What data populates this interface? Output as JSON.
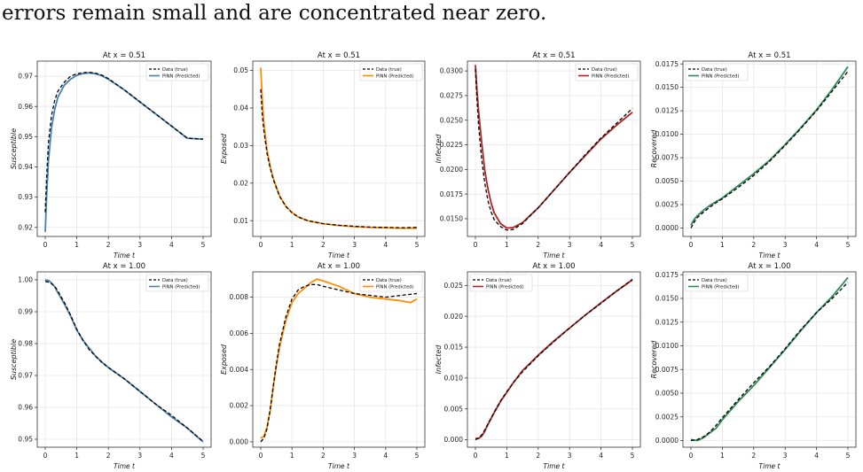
{
  "caption": "errors remain small and are concentrated near zero.",
  "legend_true": "Data (true)",
  "legend_pred": "PINN (Predicted)",
  "xlabel": "Time t",
  "chart_data": [
    {
      "type": "line",
      "title": "At x = 0.51",
      "xlabel": "Time t",
      "ylabel": "Susceptible",
      "xlim": [
        0,
        5
      ],
      "ylim": [
        0.917,
        0.975
      ],
      "xticks": [
        "0",
        "1",
        "2",
        "3",
        "4",
        "5"
      ],
      "yticks": [
        "0.92",
        "0.93",
        "0.94",
        "0.95",
        "0.96",
        "0.97"
      ],
      "pred_color": "#4682b4",
      "legend": "top-right",
      "series": [
        {
          "name": "Data (true)",
          "x": [
            0,
            0.05,
            0.1,
            0.2,
            0.3,
            0.4,
            0.6,
            0.8,
            1.0,
            1.2,
            1.4,
            1.6,
            1.8,
            2.0,
            2.5,
            3.0,
            3.5,
            4.0,
            4.5,
            5.0
          ],
          "y": [
            0.925,
            0.938,
            0.948,
            0.957,
            0.962,
            0.965,
            0.968,
            0.97,
            0.9708,
            0.9712,
            0.9713,
            0.971,
            0.9703,
            0.9692,
            0.9655,
            0.9615,
            0.9575,
            0.9535,
            0.9495,
            0.9492
          ]
        },
        {
          "name": "PINN (Predicted)",
          "x": [
            0,
            0.05,
            0.1,
            0.2,
            0.3,
            0.4,
            0.6,
            0.8,
            1.0,
            1.2,
            1.4,
            1.6,
            1.8,
            2.0,
            2.5,
            3.0,
            3.5,
            4.0,
            4.5,
            5.0
          ],
          "y": [
            0.9185,
            0.932,
            0.942,
            0.953,
            0.959,
            0.963,
            0.967,
            0.969,
            0.9703,
            0.9709,
            0.9711,
            0.9708,
            0.9701,
            0.969,
            0.9655,
            0.9615,
            0.9575,
            0.9535,
            0.9495,
            0.9492
          ]
        }
      ]
    },
    {
      "type": "line",
      "title": "At x = 0.51",
      "xlabel": "Time t",
      "ylabel": "Exposed",
      "xlim": [
        0,
        5
      ],
      "ylim": [
        0.0058,
        0.0525
      ],
      "xticks": [
        "0",
        "1",
        "2",
        "3",
        "4",
        "5"
      ],
      "yticks": [
        "0.01",
        "0.02",
        "0.03",
        "0.04",
        "0.05"
      ],
      "pred_color": "#ff8c00",
      "legend": "top-right",
      "series": [
        {
          "name": "Data (true)",
          "x": [
            0,
            0.05,
            0.1,
            0.2,
            0.3,
            0.4,
            0.6,
            0.8,
            1.0,
            1.2,
            1.5,
            2.0,
            2.5,
            3.0,
            3.5,
            4.0,
            4.5,
            5.0
          ],
          "y": [
            0.045,
            0.038,
            0.034,
            0.028,
            0.024,
            0.021,
            0.0165,
            0.0138,
            0.0121,
            0.011,
            0.01,
            0.0092,
            0.0088,
            0.0085,
            0.0083,
            0.0082,
            0.0081,
            0.0082
          ]
        },
        {
          "name": "PINN (Predicted)",
          "x": [
            0,
            0.05,
            0.1,
            0.2,
            0.3,
            0.4,
            0.6,
            0.8,
            1.0,
            1.2,
            1.5,
            2.0,
            2.5,
            3.0,
            3.5,
            4.0,
            4.5,
            5.0
          ],
          "y": [
            0.0507,
            0.042,
            0.036,
            0.029,
            0.0245,
            0.0213,
            0.0167,
            0.0139,
            0.0122,
            0.011,
            0.01,
            0.0092,
            0.0087,
            0.0084,
            0.0082,
            0.0081,
            0.008,
            0.008
          ]
        }
      ]
    },
    {
      "type": "line",
      "title": "At x = 0.51",
      "xlabel": "Time t",
      "ylabel": "Infected",
      "xlim": [
        0,
        5
      ],
      "ylim": [
        0.0132,
        0.031
      ],
      "xticks": [
        "0",
        "1",
        "2",
        "3",
        "4",
        "5"
      ],
      "yticks": [
        "0.0150",
        "0.0175",
        "0.0200",
        "0.0225",
        "0.0250",
        "0.0275",
        "0.0300"
      ],
      "pred_color": "#b22222",
      "legend": "top-right",
      "series": [
        {
          "name": "Data (true)",
          "x": [
            0,
            0.05,
            0.1,
            0.2,
            0.3,
            0.4,
            0.5,
            0.6,
            0.8,
            1.0,
            1.2,
            1.5,
            2.0,
            2.5,
            3.0,
            3.5,
            4.0,
            4.5,
            5.0
          ],
          "y": [
            0.0302,
            0.027,
            0.0245,
            0.021,
            0.0186,
            0.0168,
            0.0157,
            0.0149,
            0.0142,
            0.01385,
            0.0139,
            0.0145,
            0.0161,
            0.0179,
            0.0197,
            0.0215,
            0.0232,
            0.0247,
            0.0262
          ]
        },
        {
          "name": "PINN (Predicted)",
          "x": [
            0,
            0.05,
            0.1,
            0.2,
            0.3,
            0.4,
            0.5,
            0.6,
            0.8,
            1.0,
            1.2,
            1.5,
            2.0,
            2.5,
            3.0,
            3.5,
            4.0,
            4.5,
            5.0
          ],
          "y": [
            0.0306,
            0.028,
            0.026,
            0.0227,
            0.0199,
            0.018,
            0.0166,
            0.0156,
            0.0145,
            0.01405,
            0.0141,
            0.0146,
            0.0161,
            0.0179,
            0.0197,
            0.0214,
            0.0231,
            0.0245,
            0.0258
          ]
        }
      ]
    },
    {
      "type": "line",
      "title": "At x = 0.51",
      "xlabel": "Time t",
      "ylabel": "Recovered",
      "xlim": [
        0,
        5
      ],
      "ylim": [
        -0.0009,
        0.0178
      ],
      "xticks": [
        "0",
        "1",
        "2",
        "3",
        "4",
        "5"
      ],
      "yticks": [
        "0.0000",
        "0.0025",
        "0.0050",
        "0.0075",
        "0.0100",
        "0.0125",
        "0.0150",
        "0.0175"
      ],
      "pred_color": "#2e8b57",
      "legend": "top-left",
      "series": [
        {
          "name": "Data (true)",
          "x": [
            0,
            0.1,
            0.2,
            0.4,
            0.6,
            0.8,
            1.0,
            1.5,
            2.0,
            2.5,
            3.0,
            3.5,
            4.0,
            4.5,
            5.0
          ],
          "y": [
            0.0,
            0.0006,
            0.0011,
            0.0017,
            0.0022,
            0.0027,
            0.0031,
            0.0043,
            0.0056,
            0.0071,
            0.0088,
            0.0106,
            0.0125,
            0.0146,
            0.0167
          ]
        },
        {
          "name": "PINN (Predicted)",
          "x": [
            0,
            0.1,
            0.2,
            0.4,
            0.6,
            0.8,
            1.0,
            1.5,
            2.0,
            2.5,
            3.0,
            3.5,
            4.0,
            4.5,
            5.0
          ],
          "y": [
            0.0003,
            0.0009,
            0.0013,
            0.0019,
            0.0024,
            0.0028,
            0.0032,
            0.0045,
            0.0058,
            0.0072,
            0.0089,
            0.0107,
            0.0126,
            0.0148,
            0.0172
          ]
        }
      ]
    },
    {
      "type": "line",
      "title": "At x = 1.00",
      "xlabel": "Time t",
      "ylabel": "Susceptible",
      "xlim": [
        0,
        5
      ],
      "ylim": [
        0.9475,
        1.0025
      ],
      "xticks": [
        "0",
        "1",
        "2",
        "3",
        "4",
        "5"
      ],
      "yticks": [
        "0.95",
        "0.96",
        "0.97",
        "0.98",
        "0.99",
        "1.00"
      ],
      "pred_color": "#4682b4",
      "legend": "top-right",
      "series": [
        {
          "name": "Data (true)",
          "x": [
            0,
            0.1,
            0.2,
            0.3,
            0.4,
            0.6,
            0.8,
            1.0,
            1.2,
            1.4,
            1.6,
            1.8,
            2.0,
            2.5,
            3.0,
            3.5,
            4.0,
            4.5,
            5.0
          ],
          "y": [
            0.9995,
            0.9993,
            0.9988,
            0.998,
            0.9965,
            0.993,
            0.989,
            0.9845,
            0.981,
            0.978,
            0.976,
            0.974,
            0.9725,
            0.969,
            0.965,
            0.961,
            0.9575,
            0.9535,
            0.9493
          ]
        },
        {
          "name": "PINN (Predicted)",
          "x": [
            0,
            0.1,
            0.2,
            0.3,
            0.4,
            0.6,
            0.8,
            1.0,
            1.2,
            1.4,
            1.6,
            1.8,
            2.0,
            2.5,
            3.0,
            3.5,
            4.0,
            4.5,
            5.0
          ],
          "y": [
            1.0,
            0.9998,
            0.999,
            0.9978,
            0.996,
            0.9925,
            0.9887,
            0.9842,
            0.981,
            0.9785,
            0.976,
            0.9742,
            0.9725,
            0.969,
            0.965,
            0.961,
            0.957,
            0.9535,
            0.9492
          ]
        }
      ]
    },
    {
      "type": "line",
      "title": "At x = 1.00",
      "xlabel": "Time t",
      "ylabel": "Exposed",
      "xlim": [
        0,
        5
      ],
      "ylim": [
        -0.0003,
        0.0094
      ],
      "xticks": [
        "0",
        "1",
        "2",
        "3",
        "4",
        "5"
      ],
      "yticks": [
        "0.000",
        "0.002",
        "0.004",
        "0.006",
        "0.008"
      ],
      "pred_color": "#ff8c00",
      "legend": "top-right",
      "series": [
        {
          "name": "Data (true)",
          "x": [
            0,
            0.1,
            0.2,
            0.3,
            0.4,
            0.5,
            0.6,
            0.8,
            1.0,
            1.2,
            1.4,
            1.6,
            1.8,
            2.0,
            2.5,
            3.0,
            3.5,
            4.0,
            4.5,
            5.0
          ],
          "y": [
            0.0,
            0.0002,
            0.0007,
            0.0018,
            0.0031,
            0.0043,
            0.0054,
            0.0069,
            0.0079,
            0.0084,
            0.0086,
            0.0087,
            0.0087,
            0.0086,
            0.0084,
            0.0082,
            0.0081,
            0.008,
            0.0081,
            0.0082
          ]
        },
        {
          "name": "PINN (Predicted)",
          "x": [
            0,
            0.1,
            0.2,
            0.3,
            0.4,
            0.5,
            0.6,
            0.8,
            1.0,
            1.2,
            1.4,
            1.6,
            1.8,
            2.0,
            2.5,
            3.0,
            3.5,
            4.0,
            4.5,
            4.8,
            5.0
          ],
          "y": [
            0.0002,
            0.0003,
            0.0008,
            0.0017,
            0.003,
            0.0042,
            0.0052,
            0.0067,
            0.0077,
            0.0082,
            0.0085,
            0.0088,
            0.009,
            0.0089,
            0.0086,
            0.0082,
            0.008,
            0.0079,
            0.0078,
            0.0077,
            0.0079
          ]
        }
      ]
    },
    {
      "type": "line",
      "title": "At x = 1.00",
      "xlabel": "Time t",
      "ylabel": "Infected",
      "xlim": [
        0,
        5
      ],
      "ylim": [
        -0.0012,
        0.0272
      ],
      "xticks": [
        "0",
        "1",
        "2",
        "3",
        "4",
        "5"
      ],
      "yticks": [
        "0.000",
        "0.005",
        "0.010",
        "0.015",
        "0.020",
        "0.025"
      ],
      "pred_color": "#b22222",
      "legend": "top-left",
      "series": [
        {
          "name": "Data (true)",
          "x": [
            0,
            0.1,
            0.2,
            0.3,
            0.4,
            0.6,
            0.8,
            1.0,
            1.2,
            1.5,
            2.0,
            2.5,
            3.0,
            3.5,
            4.0,
            4.5,
            5.0
          ],
          "y": [
            0.0,
            0.0003,
            0.0008,
            0.0016,
            0.0026,
            0.0045,
            0.0063,
            0.0078,
            0.0092,
            0.011,
            0.0136,
            0.0159,
            0.0181,
            0.0202,
            0.0221,
            0.0241,
            0.026
          ]
        },
        {
          "name": "PINN (Predicted)",
          "x": [
            0,
            0.1,
            0.2,
            0.3,
            0.4,
            0.6,
            0.8,
            1.0,
            1.2,
            1.5,
            2.0,
            2.5,
            3.0,
            3.5,
            4.0,
            4.5,
            5.0
          ],
          "y": [
            0.0002,
            0.0002,
            0.0006,
            0.0014,
            0.0025,
            0.0044,
            0.0062,
            0.0077,
            0.0092,
            0.0112,
            0.0137,
            0.016,
            0.0181,
            0.0202,
            0.0222,
            0.0241,
            0.0259
          ]
        }
      ]
    },
    {
      "type": "line",
      "title": "At x = 1.00",
      "xlabel": "Time t",
      "ylabel": "Recovered",
      "xlim": [
        0,
        5
      ],
      "ylim": [
        -0.0007,
        0.0178
      ],
      "xticks": [
        "0",
        "1",
        "2",
        "3",
        "4",
        "5"
      ],
      "yticks": [
        "0.0000",
        "0.0025",
        "0.0050",
        "0.0075",
        "0.0100",
        "0.0125",
        "0.0150",
        "0.0175"
      ],
      "pred_color": "#2e8b57",
      "legend": "top-left",
      "series": [
        {
          "name": "Data (true)",
          "x": [
            0,
            0.2,
            0.4,
            0.6,
            0.8,
            1.0,
            1.5,
            2.0,
            2.5,
            3.0,
            3.5,
            4.0,
            4.5,
            5.0
          ],
          "y": [
            0.0,
            0.0001,
            0.0004,
            0.0009,
            0.0016,
            0.0024,
            0.0043,
            0.0061,
            0.0078,
            0.0097,
            0.0117,
            0.0135,
            0.015,
            0.0167
          ]
        },
        {
          "name": "PINN (Predicted)",
          "x": [
            0,
            0.2,
            0.4,
            0.6,
            0.8,
            1.0,
            1.5,
            2.0,
            2.5,
            3.0,
            3.5,
            4.0,
            4.5,
            5.0
          ],
          "y": [
            0.0001,
            0.0,
            0.0003,
            0.0008,
            0.0013,
            0.0022,
            0.0041,
            0.0058,
            0.0077,
            0.0096,
            0.0116,
            0.0135,
            0.0152,
            0.0172
          ]
        }
      ]
    }
  ]
}
